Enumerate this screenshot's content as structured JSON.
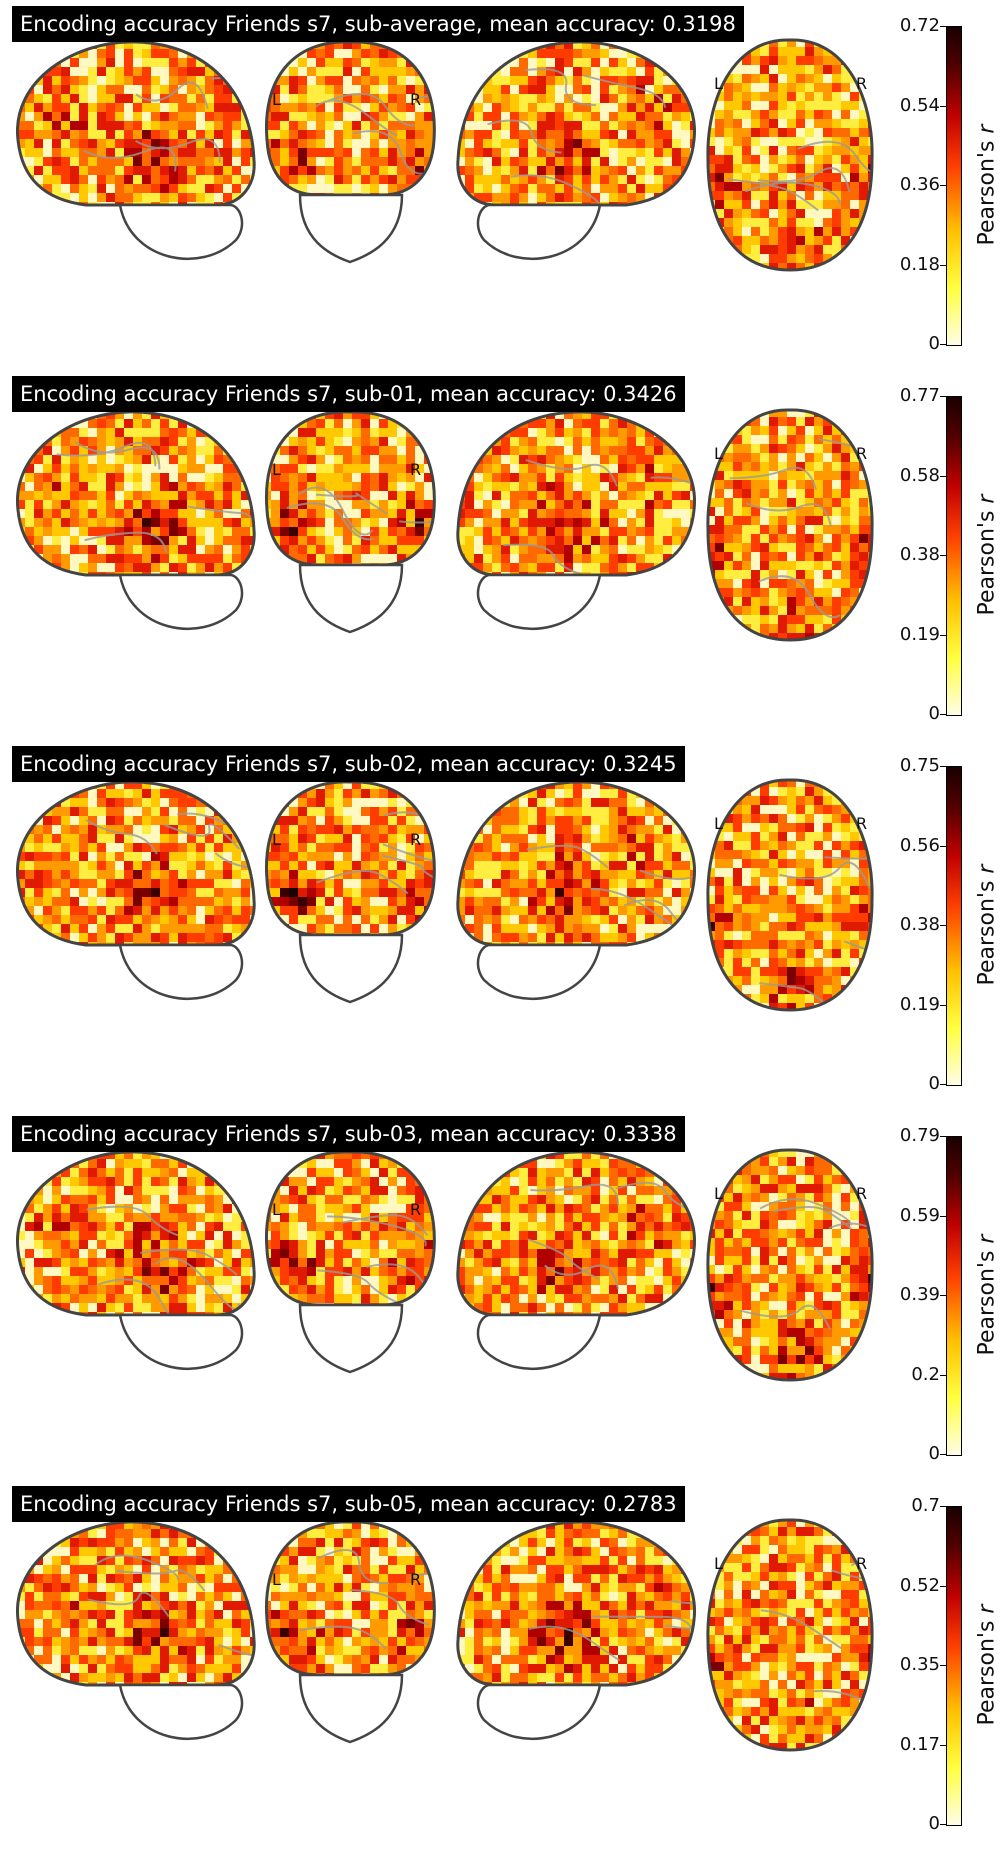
{
  "panels": [
    {
      "title": "Encoding accuracy Friends s7, sub-average, mean accuracy: 0.3198",
      "colorbar_ticks": [
        "0.72",
        "0.54",
        "0.36",
        "0.18",
        "0"
      ],
      "colorbar_label_main": "Pearson's ",
      "colorbar_label_var": "r",
      "left_label": "L",
      "right_label": "R"
    },
    {
      "title": "Encoding accuracy Friends s7, sub-01, mean accuracy: 0.3426",
      "colorbar_ticks": [
        "0.77",
        "0.58",
        "0.38",
        "0.19",
        "0"
      ],
      "colorbar_label_main": "Pearson's ",
      "colorbar_label_var": "r",
      "left_label": "L",
      "right_label": "R"
    },
    {
      "title": "Encoding accuracy Friends s7, sub-02, mean accuracy: 0.3245",
      "colorbar_ticks": [
        "0.75",
        "0.56",
        "0.38",
        "0.19",
        "0"
      ],
      "colorbar_label_main": "Pearson's ",
      "colorbar_label_var": "r",
      "left_label": "L",
      "right_label": "R"
    },
    {
      "title": "Encoding accuracy Friends s7, sub-03, mean accuracy: 0.3338",
      "colorbar_ticks": [
        "0.79",
        "0.59",
        "0.39",
        "0.2",
        "0"
      ],
      "colorbar_label_main": "Pearson's ",
      "colorbar_label_var": "r",
      "left_label": "L",
      "right_label": "R"
    },
    {
      "title": "Encoding accuracy Friends s7, sub-05, mean accuracy: 0.2783",
      "colorbar_ticks": [
        "0.7",
        "0.52",
        "0.35",
        "0.17",
        "0"
      ],
      "colorbar_label_main": "Pearson's ",
      "colorbar_label_var": "r",
      "left_label": "L",
      "right_label": "R"
    }
  ],
  "colors": {
    "low": "#fffde6",
    "mid": "#ff4000",
    "high": "#1a0000",
    "outline": "#444444",
    "contour": "#9a9a9a"
  }
}
